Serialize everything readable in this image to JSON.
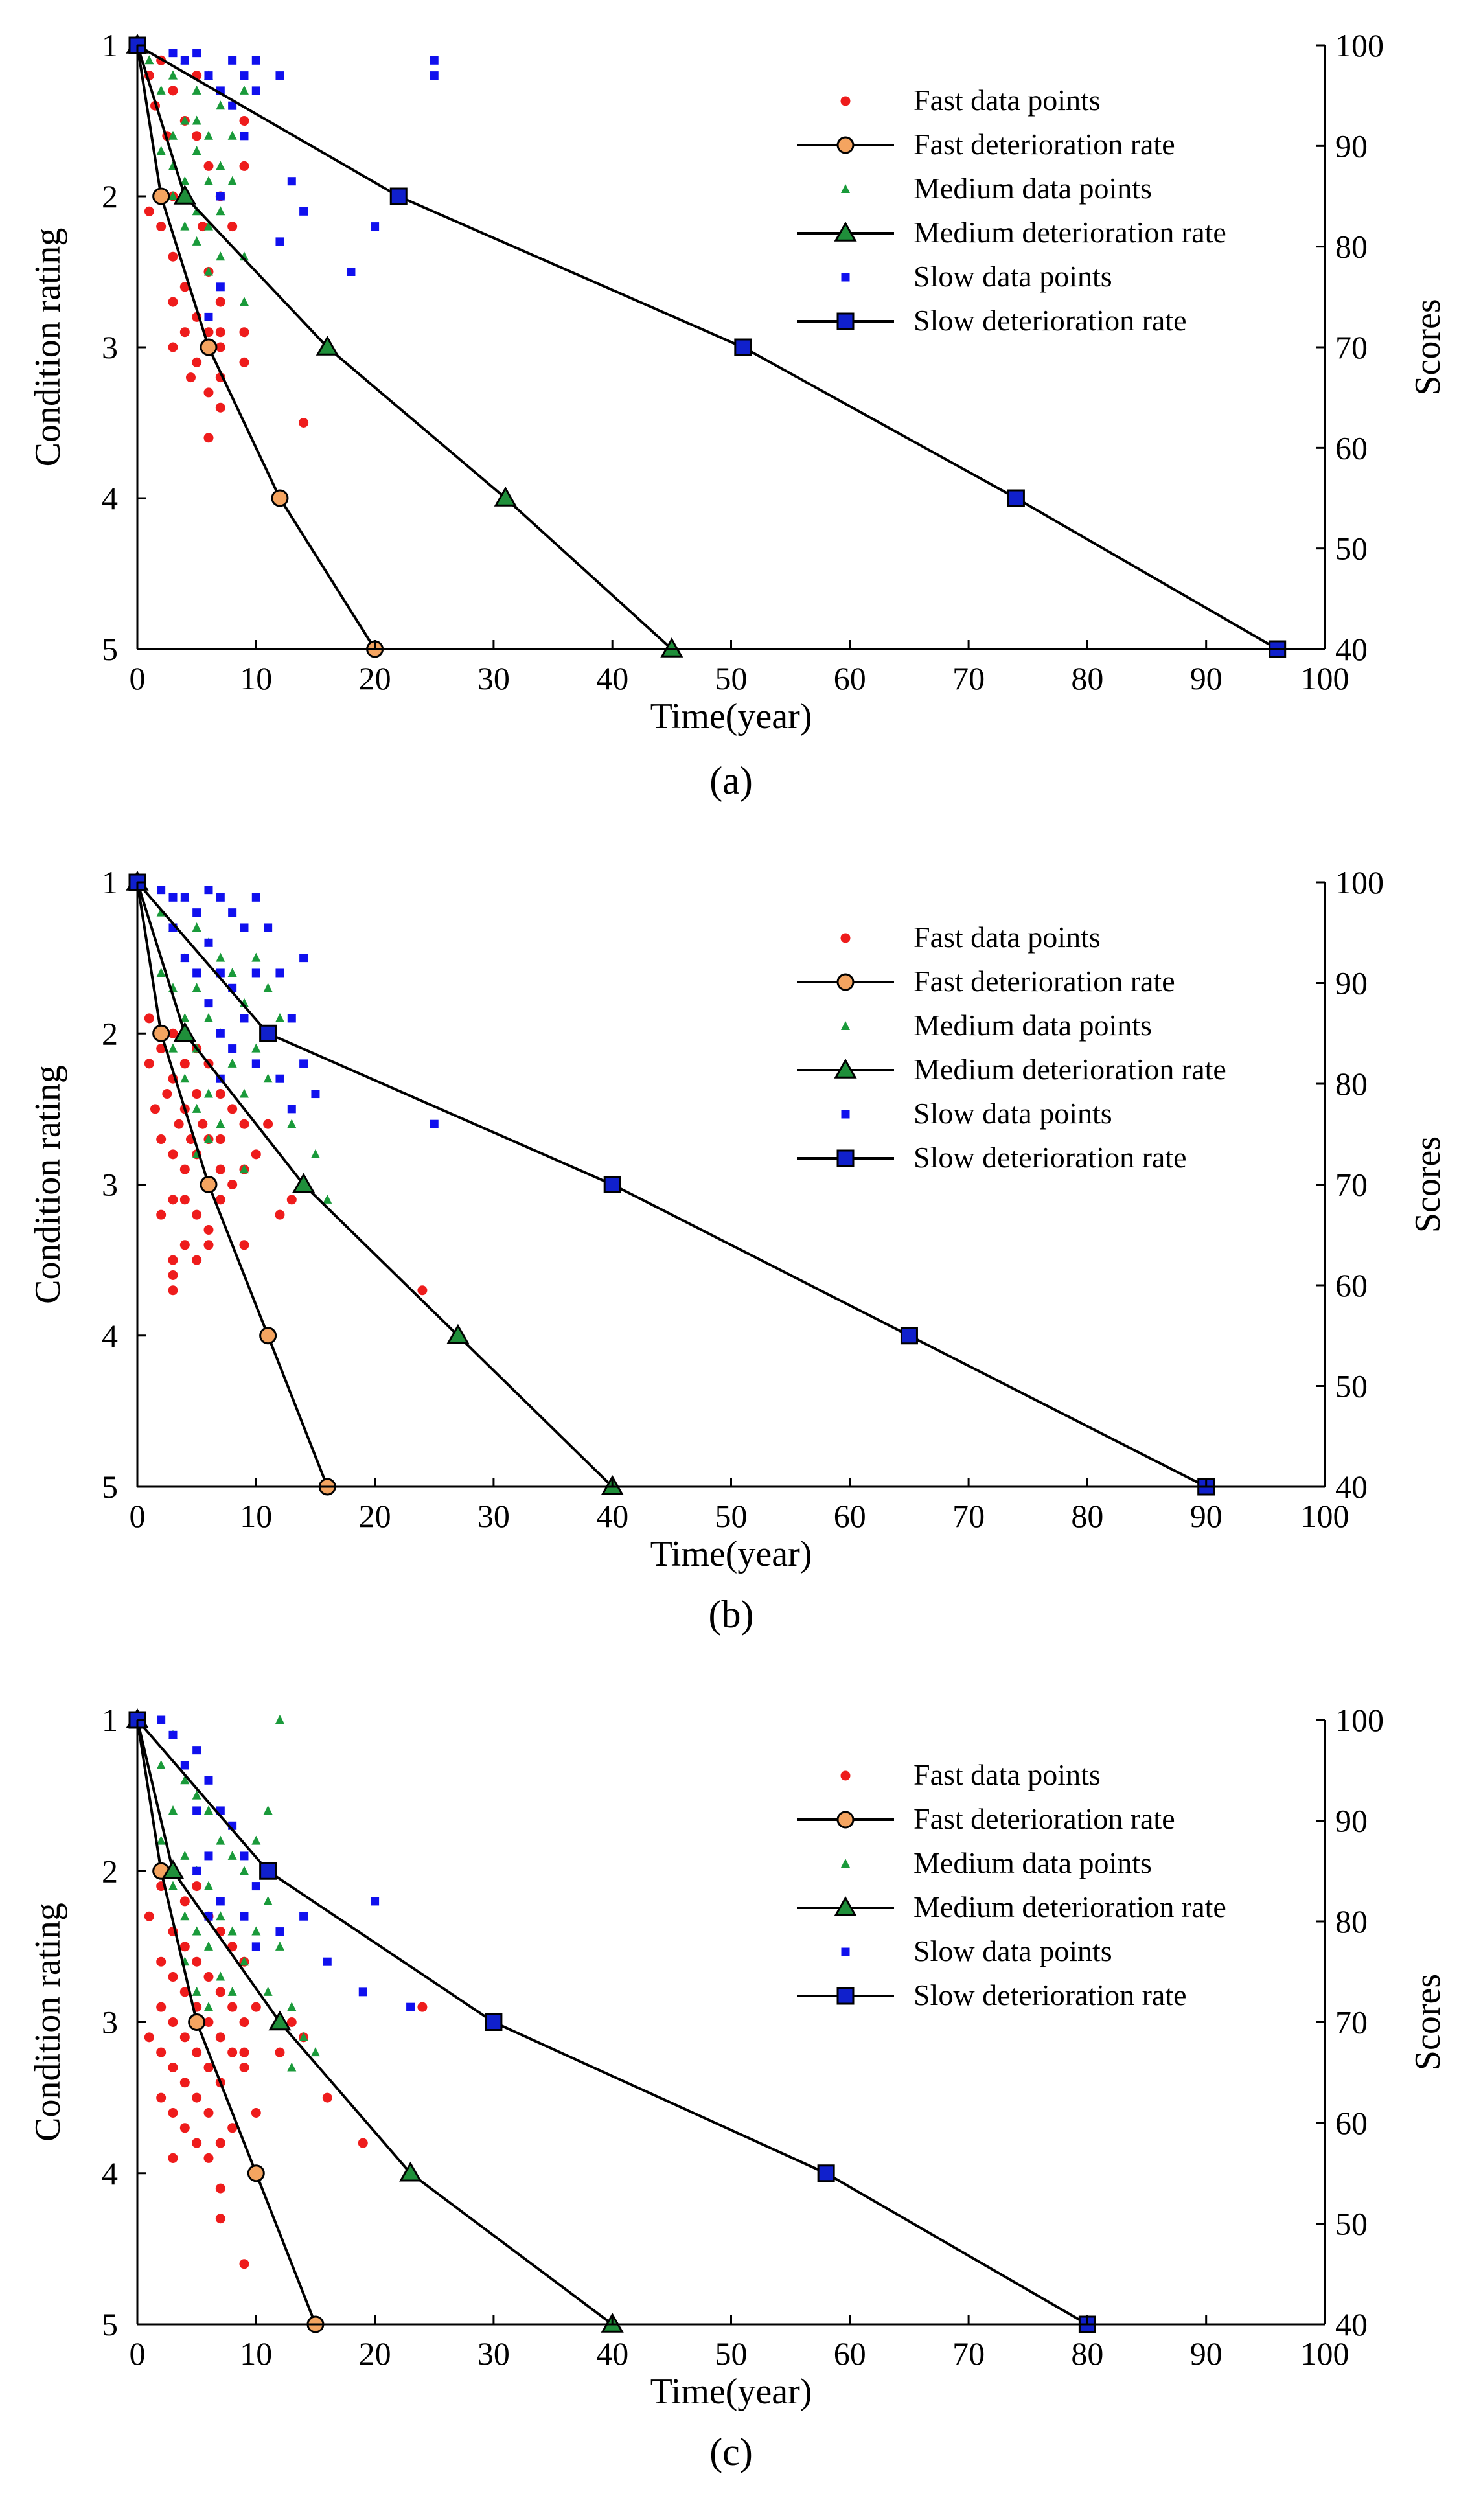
{
  "figure": {
    "panel_labels": [
      "(a)",
      "(b)",
      "(c)"
    ]
  },
  "colors": {
    "fast_points": "#ee1c1c",
    "fast_marker": "#f4a460",
    "medium_points": "#1a9a3a",
    "medium_marker": "#1f8f3a",
    "slow_points": "#1010ee",
    "slow_marker": "#1020cc",
    "line": "#000000"
  },
  "chart_data": [
    {
      "type": "scatter",
      "panel": "(a)",
      "xlabel": "Time(year)",
      "ylabel_left": "Condition rating",
      "ylabel_right": "Scores",
      "xlim": [
        0,
        100
      ],
      "ylim_left": [
        1,
        5
      ],
      "ylim_right": [
        40,
        100
      ],
      "x_ticks": [
        0,
        10,
        20,
        30,
        40,
        50,
        60,
        70,
        80,
        90,
        100
      ],
      "y_ticks_left": [
        1,
        2,
        3,
        4,
        5
      ],
      "y_ticks_right": [
        100,
        90,
        80,
        70,
        60,
        50,
        40
      ],
      "legend": [
        "Fast data points",
        "Fast deterioration rate",
        "Medium data points",
        "Medium deterioration rate",
        "Slow data points",
        "Slow deterioration rate"
      ],
      "series": [
        {
          "name": "Fast deterioration rate",
          "kind": "line",
          "x": [
            0,
            2,
            6,
            12,
            20
          ],
          "y": [
            1,
            2,
            3,
            4,
            5
          ]
        },
        {
          "name": "Medium deterioration rate",
          "kind": "line",
          "x": [
            0,
            4,
            16,
            31,
            45
          ],
          "y": [
            1,
            2,
            3,
            4,
            5
          ]
        },
        {
          "name": "Slow deterioration rate",
          "kind": "line",
          "x": [
            0,
            22,
            51,
            74,
            96
          ],
          "y": [
            1,
            2,
            3,
            4,
            5
          ]
        },
        {
          "name": "Fast data points",
          "kind": "points",
          "x": [
            1,
            1,
            1.5,
            2,
            2,
            2.5,
            3,
            3,
            3,
            3,
            4,
            4,
            4,
            4.5,
            5,
            5,
            5,
            5.5,
            6,
            6,
            6,
            6,
            6,
            7,
            7,
            7,
            7,
            7,
            7,
            8,
            9,
            9,
            9,
            9,
            14,
            3,
            5
          ],
          "y": [
            1.2,
            2.1,
            1.4,
            1.1,
            2.2,
            1.6,
            1.3,
            2.0,
            2.4,
            3.0,
            1.5,
            2.6,
            2.9,
            3.2,
            1.2,
            2.8,
            3.1,
            2.2,
            1.8,
            2.5,
            3.3,
            3.6,
            2.9,
            2.0,
            2.7,
            2.9,
            3.0,
            3.2,
            3.4,
            2.2,
            1.5,
            1.8,
            2.9,
            3.1,
            3.5,
            2.7,
            1.6
          ]
        },
        {
          "name": "Medium data points",
          "kind": "points",
          "x": [
            1,
            2,
            2,
            3,
            3,
            3,
            4,
            4,
            4,
            5,
            5,
            5,
            5,
            6,
            6,
            6,
            6,
            6,
            7,
            7,
            7,
            7,
            8,
            8,
            9,
            9,
            9,
            5,
            4,
            3
          ],
          "y": [
            1.1,
            1.3,
            1.7,
            1.2,
            1.6,
            2.0,
            1.1,
            1.5,
            1.9,
            1.3,
            1.7,
            2.1,
            2.3,
            1.2,
            1.6,
            1.9,
            2.2,
            2.5,
            1.4,
            1.8,
            2.1,
            2.4,
            1.6,
            1.9,
            1.3,
            2.4,
            2.7,
            1.5,
            2.2,
            1.8
          ]
        },
        {
          "name": "Slow data points",
          "kind": "points",
          "x": [
            3,
            4,
            5,
            6,
            7,
            7,
            8,
            8,
            9,
            9,
            10,
            10,
            12,
            12,
            13,
            14,
            18,
            20,
            25,
            25,
            7,
            6
          ],
          "y": [
            1.05,
            1.1,
            1.05,
            1.2,
            1.3,
            2.0,
            1.1,
            1.4,
            1.2,
            1.6,
            1.1,
            1.3,
            1.2,
            2.3,
            1.9,
            2.1,
            2.5,
            2.2,
            1.1,
            1.2,
            2.6,
            2.8
          ]
        }
      ]
    },
    {
      "type": "scatter",
      "panel": "(b)",
      "xlabel": "Time(year)",
      "ylabel_left": "Condition rating",
      "ylabel_right": "Scores",
      "xlim": [
        0,
        100
      ],
      "ylim_left": [
        1,
        5
      ],
      "ylim_right": [
        40,
        100
      ],
      "x_ticks": [
        0,
        10,
        20,
        30,
        40,
        50,
        60,
        70,
        80,
        90,
        100
      ],
      "y_ticks_left": [
        1,
        2,
        3,
        4,
        5
      ],
      "y_ticks_right": [
        100,
        90,
        80,
        70,
        60,
        50,
        40
      ],
      "legend": [
        "Fast data points",
        "Fast deterioration rate",
        "Medium data points",
        "Medium deterioration rate",
        "Slow data points",
        "Slow deterioration rate"
      ],
      "series": [
        {
          "name": "Fast deterioration rate",
          "kind": "line",
          "x": [
            0,
            2,
            6,
            11,
            16
          ],
          "y": [
            1,
            2,
            3,
            4,
            5
          ]
        },
        {
          "name": "Medium deterioration rate",
          "kind": "line",
          "x": [
            0,
            4,
            14,
            27,
            40
          ],
          "y": [
            1,
            2,
            3,
            4,
            5
          ]
        },
        {
          "name": "Slow deterioration rate",
          "kind": "line",
          "x": [
            0,
            11,
            40,
            65,
            90
          ],
          "y": [
            1,
            2,
            3,
            4,
            5
          ]
        },
        {
          "name": "Fast data points",
          "kind": "points",
          "x": [
            1,
            1,
            1.5,
            2,
            2,
            2,
            2.5,
            3,
            3,
            3,
            3,
            3,
            3.5,
            4,
            4,
            4,
            4,
            4,
            4.5,
            5,
            5,
            5,
            5,
            5,
            5.5,
            6,
            6,
            6,
            6,
            6,
            7,
            7,
            7,
            7,
            8,
            8,
            9,
            9,
            9,
            3,
            3,
            12,
            13,
            24,
            10,
            11
          ],
          "y": [
            1.9,
            2.2,
            2.5,
            2.1,
            2.7,
            3.2,
            2.4,
            2.0,
            2.3,
            2.8,
            3.1,
            3.6,
            2.6,
            2.2,
            2.5,
            2.9,
            3.1,
            3.4,
            2.7,
            2.1,
            2.4,
            2.8,
            3.2,
            3.5,
            2.6,
            2.2,
            2.7,
            3.0,
            3.3,
            3.4,
            2.4,
            2.7,
            2.9,
            3.1,
            2.5,
            3.0,
            2.6,
            2.9,
            3.4,
            3.7,
            3.5,
            3.2,
            3.1,
            3.7,
            2.8,
            2.6
          ]
        },
        {
          "name": "Medium data points",
          "kind": "points",
          "x": [
            2,
            2,
            3,
            3,
            3,
            4,
            4,
            4,
            4,
            5,
            5,
            5,
            5,
            6,
            6,
            6,
            7,
            7,
            7,
            8,
            8,
            9,
            9,
            9,
            10,
            10,
            11,
            11,
            12,
            13,
            15,
            16,
            5,
            6
          ],
          "y": [
            1.2,
            1.6,
            1.3,
            1.7,
            2.1,
            1.1,
            1.5,
            1.9,
            2.3,
            1.3,
            1.7,
            2.1,
            2.5,
            1.4,
            1.9,
            2.4,
            1.5,
            2.0,
            2.6,
            1.6,
            2.2,
            1.8,
            2.4,
            2.9,
            1.5,
            2.1,
            1.7,
            2.3,
            1.9,
            2.6,
            2.8,
            3.1,
            2.8,
            2.7
          ]
        },
        {
          "name": "Slow data points",
          "kind": "points",
          "x": [
            2,
            3,
            3,
            4,
            4,
            5,
            5,
            6,
            6,
            6,
            7,
            7,
            7,
            8,
            8,
            9,
            9,
            10,
            10,
            10,
            11,
            11,
            12,
            12,
            13,
            13,
            14,
            14,
            15,
            25,
            7,
            8
          ],
          "y": [
            1.05,
            1.1,
            1.3,
            1.1,
            1.5,
            1.2,
            1.6,
            1.05,
            1.4,
            1.8,
            1.1,
            1.6,
            2.0,
            1.2,
            1.7,
            1.3,
            1.9,
            1.1,
            1.6,
            2.2,
            1.3,
            2.0,
            1.6,
            2.3,
            1.9,
            2.5,
            1.5,
            2.2,
            2.4,
            2.6,
            2.3,
            2.1
          ]
        }
      ]
    },
    {
      "type": "scatter",
      "panel": "(c)",
      "xlabel": "Time(year)",
      "ylabel_left": "Condition rating",
      "ylabel_right": "Scores",
      "xlim": [
        0,
        100
      ],
      "ylim_left": [
        1,
        5
      ],
      "ylim_right": [
        40,
        100
      ],
      "x_ticks": [
        0,
        10,
        20,
        30,
        40,
        50,
        60,
        70,
        80,
        90,
        100
      ],
      "y_ticks_left": [
        1,
        2,
        3,
        4,
        5
      ],
      "y_ticks_right": [
        100,
        90,
        80,
        70,
        60,
        50,
        40
      ],
      "legend": [
        "Fast data points",
        "Fast deterioration rate",
        "Medium data points",
        "Medium deterioration rate",
        "Slow data points",
        "Slow deterioration rate"
      ],
      "series": [
        {
          "name": "Fast deterioration rate",
          "kind": "line",
          "x": [
            0,
            2,
            5,
            10,
            15
          ],
          "y": [
            1,
            2,
            3,
            4,
            5
          ]
        },
        {
          "name": "Medium deterioration rate",
          "kind": "line",
          "x": [
            0,
            3,
            12,
            23,
            40
          ],
          "y": [
            1,
            2,
            3,
            4,
            5
          ]
        },
        {
          "name": "Slow deterioration rate",
          "kind": "line",
          "x": [
            0,
            11,
            30,
            58,
            80
          ],
          "y": [
            1,
            2,
            3,
            4,
            5
          ]
        },
        {
          "name": "Fast data points",
          "kind": "points",
          "x": [
            1,
            1,
            2,
            2,
            2,
            2,
            2,
            3,
            3,
            3,
            3,
            3,
            3,
            3,
            4,
            4,
            4,
            4,
            4,
            4,
            5,
            5,
            5,
            5,
            5,
            5,
            6,
            6,
            6,
            6,
            6,
            6,
            7,
            7,
            7,
            7,
            7,
            8,
            8,
            8,
            8,
            9,
            9,
            9,
            9,
            10,
            10,
            12,
            13,
            14,
            16,
            19,
            24,
            3,
            7,
            7,
            9
          ],
          "y": [
            2.3,
            3.1,
            2.1,
            2.6,
            2.9,
            3.2,
            3.5,
            2.0,
            2.4,
            2.7,
            3.0,
            3.3,
            3.6,
            3.9,
            2.2,
            2.5,
            2.8,
            3.1,
            3.4,
            3.7,
            2.1,
            2.6,
            2.9,
            3.2,
            3.5,
            3.8,
            2.3,
            2.7,
            3.0,
            3.3,
            3.6,
            3.9,
            2.4,
            2.8,
            3.1,
            3.4,
            3.8,
            2.5,
            2.9,
            3.2,
            3.7,
            2.6,
            3.0,
            3.3,
            4.6,
            2.9,
            3.6,
            3.2,
            3.0,
            3.1,
            3.5,
            3.8,
            2.9,
            3.9,
            4.1,
            4.3,
            3.2
          ]
        },
        {
          "name": "Medium data points",
          "kind": "points",
          "x": [
            2,
            2,
            3,
            3,
            3,
            4,
            4,
            4,
            4,
            5,
            5,
            5,
            5,
            6,
            6,
            6,
            6,
            7,
            7,
            7,
            8,
            8,
            8,
            9,
            9,
            10,
            10,
            11,
            11,
            12,
            13,
            13,
            14,
            15,
            12,
            11
          ],
          "y": [
            1.3,
            1.8,
            1.1,
            1.6,
            2.1,
            1.4,
            1.9,
            2.3,
            2.6,
            1.5,
            2.0,
            2.4,
            2.8,
            1.6,
            2.1,
            2.5,
            2.9,
            1.8,
            2.3,
            2.7,
            1.9,
            2.4,
            2.8,
            2.0,
            2.6,
            1.8,
            2.4,
            2.2,
            2.8,
            2.5,
            2.9,
            3.3,
            3.1,
            3.2,
            1.0,
            1.6
          ]
        },
        {
          "name": "Slow data points",
          "kind": "points",
          "x": [
            2,
            3,
            4,
            5,
            5,
            6,
            6,
            7,
            7,
            8,
            9,
            9,
            10,
            10,
            11,
            12,
            14,
            16,
            19,
            20,
            23,
            5,
            6
          ],
          "y": [
            1.0,
            1.1,
            1.3,
            1.2,
            1.6,
            1.4,
            1.9,
            1.6,
            2.2,
            1.7,
            1.9,
            2.3,
            2.1,
            2.5,
            2.0,
            2.4,
            2.3,
            2.6,
            2.8,
            2.2,
            2.9,
            2.0,
            2.3
          ]
        }
      ]
    }
  ]
}
